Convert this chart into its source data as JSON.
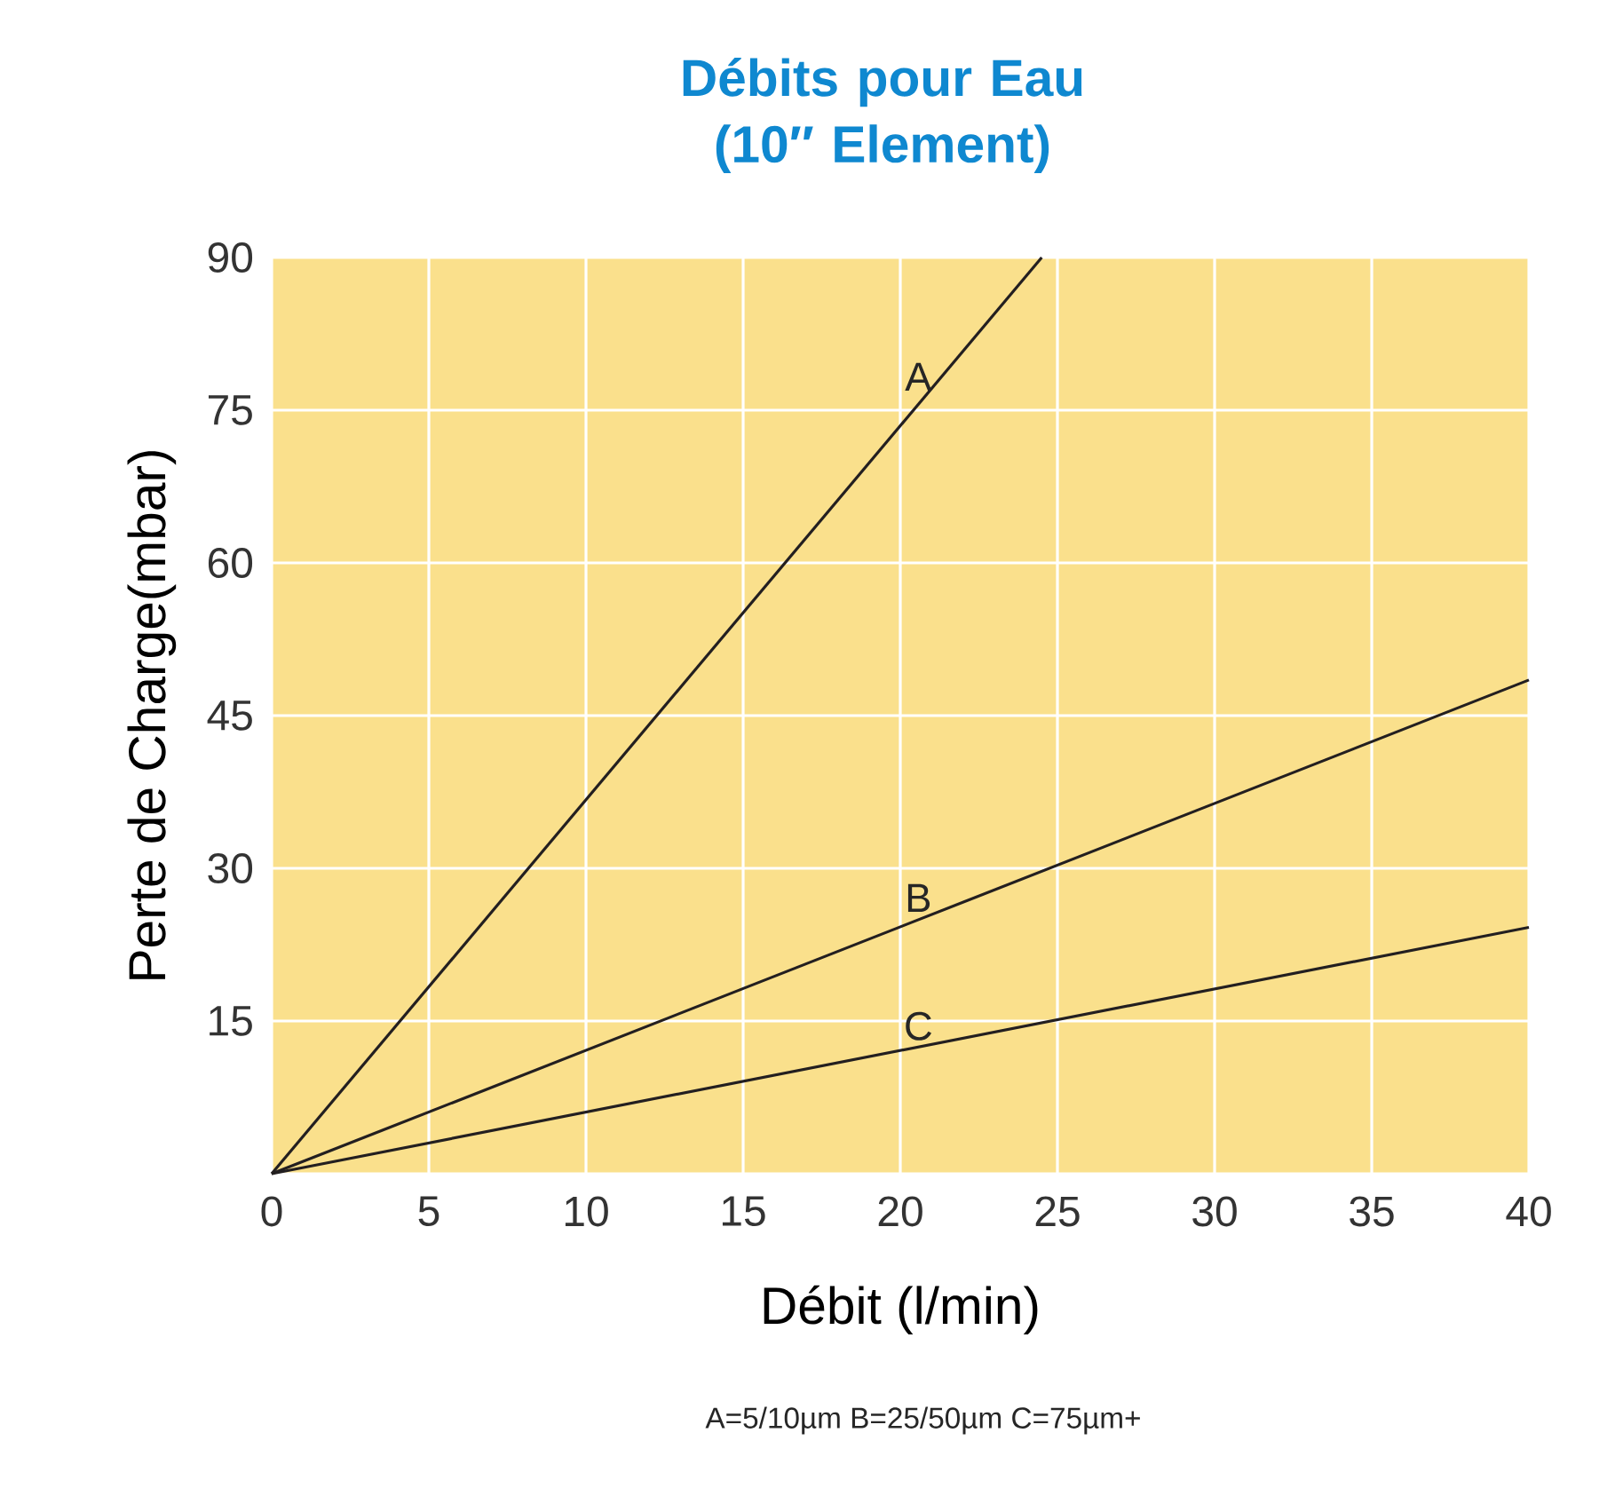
{
  "chart_data": {
    "type": "line",
    "title": "Débits pour Eau\n(10″ Element)",
    "xlabel": "Débit (l/min)",
    "ylabel": "Perte de Charge(mbar)",
    "series": [
      {
        "name": "A",
        "color": "#231f20",
        "x": [
          0,
          24.5
        ],
        "values": [
          0,
          90
        ]
      },
      {
        "name": "B",
        "color": "#231f20",
        "x": [
          0,
          40
        ],
        "values": [
          0,
          48.5
        ]
      },
      {
        "name": "C",
        "color": "#231f20",
        "x": [
          0,
          40
        ],
        "values": [
          0,
          24.2
        ]
      }
    ],
    "xlim": [
      0,
      40
    ],
    "ylim": [
      0,
      90
    ],
    "xticks": [
      0,
      5,
      10,
      15,
      20,
      25,
      30,
      35,
      40
    ],
    "yticks": [
      {
        "value": 0,
        "label": null
      },
      15,
      30,
      45,
      60,
      75,
      90
    ],
    "grid": true,
    "marker": "none",
    "line_style": "solid",
    "annotations": [
      "A=5/10µm B=25/50µm C=75µm+"
    ]
  }
}
